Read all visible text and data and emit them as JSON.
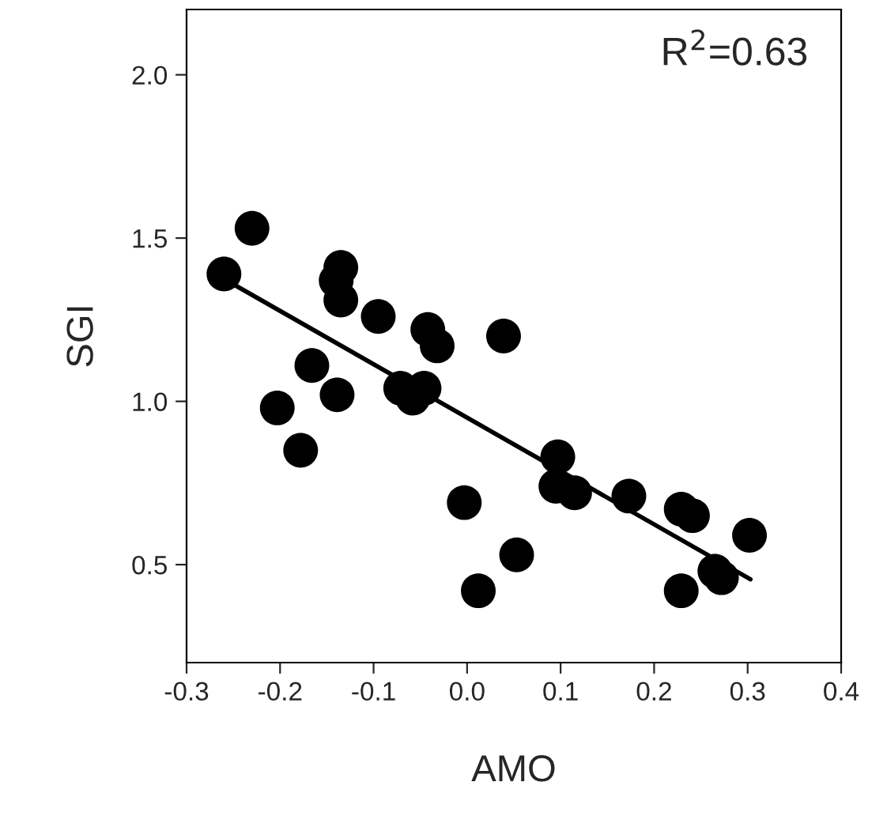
{
  "chart_data": {
    "type": "scatter",
    "xlabel": "AMO",
    "ylabel": "SGI",
    "annotations": [
      "R$^{2}$=0.63"
    ],
    "series": [
      {
        "color": "#000000",
        "marker": "circle",
        "x": [
          -0.26,
          -0.23,
          -0.135,
          -0.14,
          -0.135,
          -0.095,
          -0.042,
          -0.032,
          0.039,
          -0.166,
          -0.203,
          -0.139,
          -0.178,
          -0.071,
          -0.046,
          -0.058,
          -0.003,
          0.012,
          0.053,
          0.097,
          0.095,
          0.115,
          0.173,
          0.229,
          0.241,
          0.229,
          0.265,
          0.272,
          0.302
        ],
        "values": [
          1.39,
          1.53,
          1.41,
          1.37,
          1.31,
          1.26,
          1.22,
          1.17,
          1.2,
          1.11,
          0.98,
          1.02,
          0.85,
          1.04,
          1.04,
          1.01,
          0.69,
          0.42,
          0.53,
          0.83,
          0.74,
          0.72,
          0.71,
          0.67,
          0.65,
          0.42,
          0.48,
          0.46,
          0.59
        ]
      },
      {
        "type": "line",
        "color": "#000000",
        "x": [
          -0.26,
          0.303
        ],
        "values": [
          1.375,
          0.455
        ]
      }
    ],
    "xlim": [
      -0.3,
      0.4
    ],
    "xticks": [
      -0.3,
      -0.2,
      -0.1,
      {
        "value": 0,
        "label": "0.0"
      },
      0.1,
      0.2,
      0.3,
      0.4
    ],
    "ylim": [
      0.2,
      2.2
    ],
    "yticks": [
      0.5,
      {
        "value": 1,
        "label": "1.0"
      },
      1.5,
      {
        "value": 2,
        "label": "2.0"
      }
    ],
    "grid": false,
    "legend": false
  }
}
